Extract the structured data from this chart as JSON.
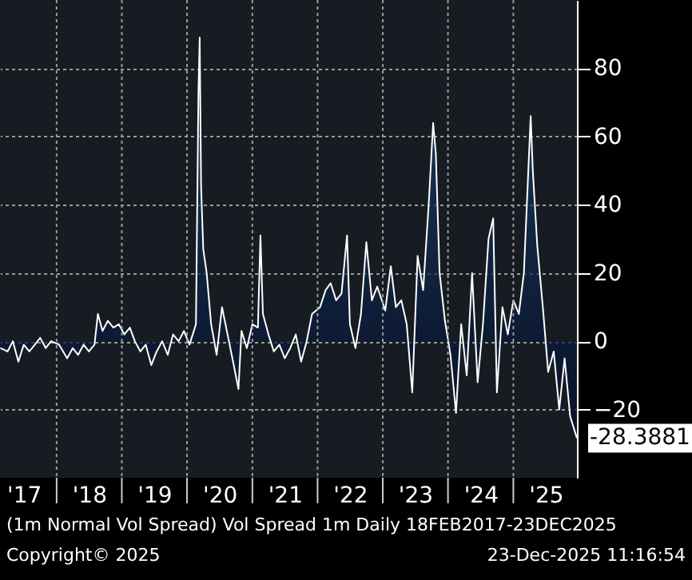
{
  "chart_data": {
    "type": "area",
    "x": [
      "2017-02-20",
      "2017-04-01",
      "2017-05-01",
      "2017-06-01",
      "2017-07-01",
      "2017-08-01",
      "2017-09-01",
      "2017-10-01",
      "2017-11-01",
      "2017-12-01",
      "2018-01-15",
      "2018-03-01",
      "2018-04-01",
      "2018-05-01",
      "2018-06-01",
      "2018-07-01",
      "2018-08-01",
      "2018-08-20",
      "2018-09-15",
      "2018-10-15",
      "2018-11-15",
      "2018-12-15",
      "2019-01-15",
      "2019-02-15",
      "2019-03-15",
      "2019-04-15",
      "2019-05-15",
      "2019-06-15",
      "2019-07-15",
      "2019-08-15",
      "2019-09-15",
      "2019-10-15",
      "2019-11-15",
      "2019-12-15",
      "2020-01-15",
      "2020-02-20",
      "2020-03-05",
      "2020-03-12",
      "2020-03-20",
      "2020-04-01",
      "2020-04-20",
      "2020-05-15",
      "2020-06-15",
      "2020-07-15",
      "2020-08-15",
      "2020-09-15",
      "2020-10-15",
      "2020-11-01",
      "2020-12-01",
      "2021-01-01",
      "2021-02-01",
      "2021-02-15",
      "2021-03-01",
      "2021-04-01",
      "2021-05-01",
      "2021-06-01",
      "2021-07-01",
      "2021-08-01",
      "2021-09-01",
      "2021-10-01",
      "2021-11-01",
      "2021-12-01",
      "2022-01-15",
      "2022-02-15",
      "2022-03-15",
      "2022-04-15",
      "2022-05-15",
      "2022-06-15",
      "2022-07-01",
      "2022-08-01",
      "2022-09-01",
      "2022-10-01",
      "2022-11-01",
      "2022-12-01",
      "2023-01-15",
      "2023-02-15",
      "2023-03-15",
      "2023-04-15",
      "2023-05-15",
      "2023-06-15",
      "2023-07-15",
      "2023-08-15",
      "2023-09-15",
      "2023-10-10",
      "2023-10-25",
      "2023-11-15",
      "2023-12-15",
      "2024-01-15",
      "2024-02-15",
      "2024-03-15",
      "2024-04-15",
      "2024-05-15",
      "2024-06-15",
      "2024-07-15",
      "2024-08-15",
      "2024-09-10",
      "2024-10-01",
      "2024-11-01",
      "2024-12-01",
      "2025-01-01",
      "2025-02-01",
      "2025-03-01",
      "2025-04-08",
      "2025-04-20",
      "2025-05-15",
      "2025-06-15",
      "2025-07-15",
      "2025-08-15",
      "2025-09-15",
      "2025-10-15",
      "2025-11-15",
      "2025-12-23"
    ],
    "series": [
      {
        "color": "#ffffff",
        "values": [
          -2,
          -3,
          0,
          -6,
          -1,
          -3,
          -1,
          1,
          -2,
          0,
          -1,
          -5,
          -2,
          -4,
          -1,
          -3,
          -1,
          8,
          3,
          6,
          4,
          5,
          2,
          4,
          0,
          -3,
          -1,
          -7,
          -3,
          0,
          -4,
          2,
          0,
          3,
          -1,
          5,
          73,
          89,
          45,
          27,
          20,
          5,
          -4,
          10,
          2,
          -6,
          -14,
          3,
          -2,
          5,
          4,
          31,
          8,
          2,
          -3,
          -1,
          -5,
          -2,
          2,
          -6,
          0,
          8,
          10,
          15,
          17,
          12,
          14,
          31,
          5,
          -2,
          8,
          29,
          12,
          16,
          9,
          22,
          10,
          12,
          5,
          -15,
          25,
          15,
          40,
          64,
          55,
          20,
          6,
          -4,
          -21,
          5,
          -10,
          20,
          -12,
          5,
          30,
          36,
          -15,
          10,
          2,
          12,
          8,
          20,
          66,
          50,
          28,
          10,
          -9,
          -3,
          -20,
          -5,
          -22,
          -28.3881
        ]
      }
    ],
    "xlim": [
      "2017-02-18",
      "2025-12-23"
    ],
    "xticks": [
      {
        "value": "2018-01-01",
        "label": null
      },
      {
        "value": "2019-01-01",
        "label": null
      },
      {
        "value": "2020-01-01",
        "label": null
      },
      {
        "value": "2021-01-01",
        "label": null
      },
      {
        "value": "2022-01-01",
        "label": null
      },
      {
        "value": "2023-01-01",
        "label": null
      },
      {
        "value": "2024-01-01",
        "label": null
      },
      {
        "value": "2025-01-01",
        "label": null
      },
      {
        "value": "2017-07-01",
        "label": "'17"
      },
      {
        "value": "2018-07-01",
        "label": "'18"
      },
      {
        "value": "2019-07-01",
        "label": "'19"
      },
      {
        "value": "2020-07-01",
        "label": "'20"
      },
      {
        "value": "2021-07-01",
        "label": "'21"
      },
      {
        "value": "2022-07-01",
        "label": "'22"
      },
      {
        "value": "2023-07-01",
        "label": "'23"
      },
      {
        "value": "2024-07-01",
        "label": "'24"
      },
      {
        "value": "2025-07-01",
        "label": "'25"
      }
    ],
    "ylim": [
      -40,
      100
    ],
    "yticks": [
      -20,
      0,
      20,
      40,
      60,
      80
    ],
    "grid": true,
    "annotations": [
      {
        "text": "-28.3881",
        "x": "2025-12-23",
        "y": -28.3881
      },
      "(1m Normal Vol Spread) Vol Spread 1m Daily 18FEB2017-23DEC2025",
      "Copyright© 2025",
      "23-Dec-2025 11:16:54"
    ]
  }
}
